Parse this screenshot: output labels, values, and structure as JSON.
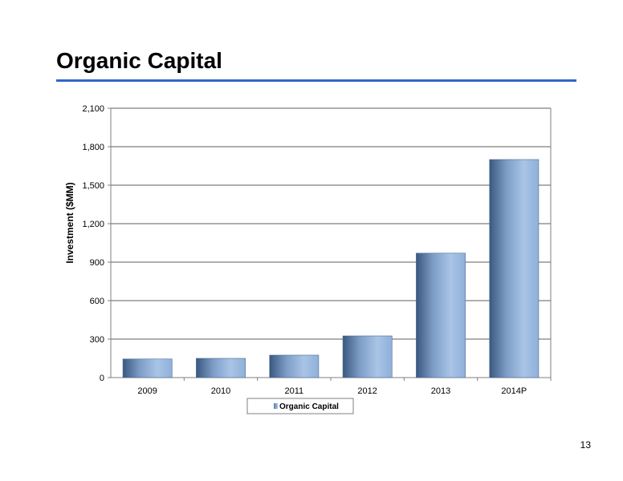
{
  "slide": {
    "title": "Organic Capital",
    "page_number": "13"
  },
  "colors": {
    "title_rule": "#3366cc",
    "bar_light": "#a9c4e6",
    "bar_dark": "#3a587f",
    "grid": "#7f7f7f"
  },
  "chart_data": {
    "type": "bar",
    "categories": [
      "2009",
      "2010",
      "2011",
      "2012",
      "2013",
      "2014P"
    ],
    "series": [
      {
        "name": "Organic Capital",
        "values": [
          145,
          150,
          175,
          325,
          970,
          1700
        ]
      }
    ],
    "ylabel": "Investment ($MM)",
    "xlabel": "",
    "ylim": [
      0,
      2100
    ],
    "yticks": [
      0,
      300,
      600,
      900,
      1200,
      1500,
      1800,
      2100
    ],
    "ytick_labels": [
      "0",
      "300",
      "600",
      "900",
      "1,200",
      "1,500",
      "1,800",
      "2,100"
    ],
    "grid": true,
    "legend": "bottom"
  }
}
